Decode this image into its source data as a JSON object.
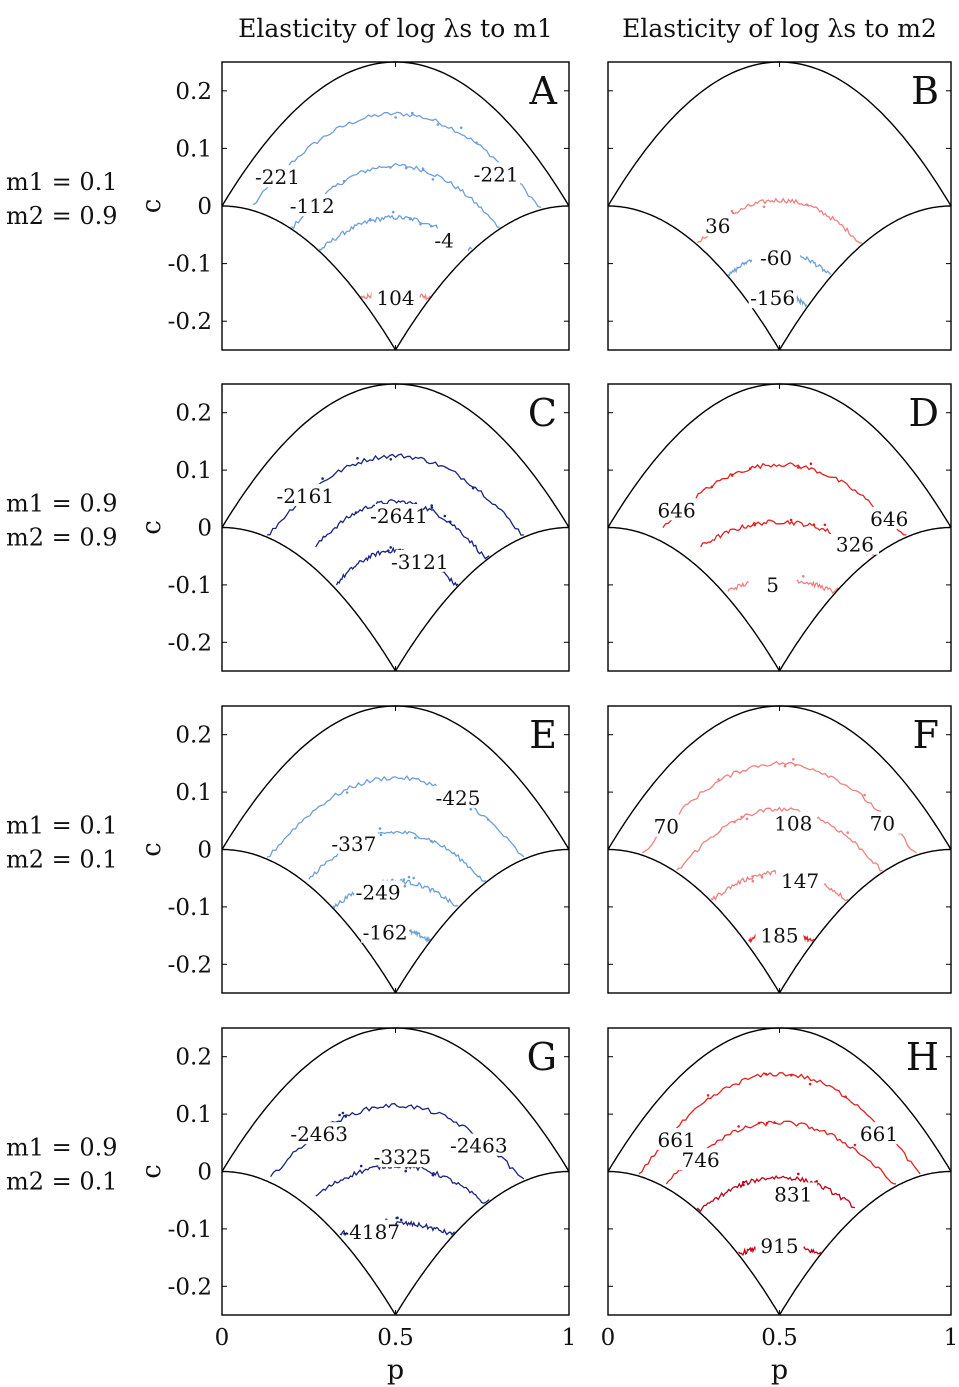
{
  "column_titles": [
    "Elasticity of log λs to m1",
    "Elasticity of log λs to m2"
  ],
  "row_labels": [
    [
      "m1 = 0.1",
      "m2 = 0.9"
    ],
    [
      "m1 = 0.9",
      "m2 = 0.9"
    ],
    [
      "m1 = 0.1",
      "m2 = 0.1"
    ],
    [
      "m1 = 0.9",
      "m2 = 0.1"
    ]
  ],
  "axes": {
    "xlabel": "p",
    "ylabel": "c",
    "xlim": [
      0,
      1
    ],
    "ylim": [
      -0.25,
      0.25
    ],
    "xticks": [
      "0",
      "0.5",
      "1"
    ],
    "yticks": [
      "0.2",
      "0.1",
      "0",
      "-0.1",
      "-0.2"
    ],
    "ytick_values": [
      0.2,
      0.1,
      0,
      -0.1,
      -0.2
    ]
  },
  "colors": {
    "light_blue": "#6f9fd8",
    "dark_blue": "#1a237e",
    "light_red": "#f08080",
    "red": "#e02020",
    "dark_red": "#c00018"
  },
  "chart_data": [
    {
      "type": "contour",
      "panel": "A",
      "contours": [
        {
          "level": -221,
          "color": "#6f9fd8",
          "p": [
            0.09,
            0.92
          ],
          "c_peak": 0.16,
          "labels": [
            {
              "text": "-221",
              "p": 0.16,
              "c": 0.05
            },
            {
              "text": "-221",
              "p": 0.79,
              "c": 0.055
            }
          ]
        },
        {
          "level": -112,
          "color": "#6f9fd8",
          "p": [
            0.2,
            0.8
          ],
          "c_peak": 0.07,
          "labels": [
            {
              "text": "-112",
              "p": 0.26,
              "c": 0.0
            }
          ]
        },
        {
          "level": -4,
          "color": "#6f9fd8",
          "p": [
            0.28,
            0.72
          ],
          "c_peak": -0.02,
          "labels": [
            {
              "text": "-4",
              "p": 0.64,
              "c": -0.06
            }
          ]
        },
        {
          "level": 104,
          "color": "#f08080",
          "p": [
            0.4,
            0.6
          ],
          "c_peak": -0.15,
          "labels": [
            {
              "text": "104",
              "p": 0.5,
              "c": -0.16
            }
          ]
        }
      ]
    },
    {
      "type": "contour",
      "panel": "B",
      "contours": [
        {
          "level": 36,
          "color": "#f08080",
          "p": [
            0.26,
            0.74
          ],
          "c_peak": 0.01,
          "labels": [
            {
              "text": "36",
              "p": 0.32,
              "c": -0.035
            }
          ]
        },
        {
          "level": -60,
          "color": "#6f9fd8",
          "p": [
            0.35,
            0.65
          ],
          "c_peak": -0.08,
          "labels": [
            {
              "text": "-60",
              "p": 0.49,
              "c": -0.09
            }
          ]
        },
        {
          "level": -156,
          "color": "#6f9fd8",
          "p": [
            0.42,
            0.58
          ],
          "c_peak": -0.15,
          "labels": [
            {
              "text": "-156",
              "p": 0.48,
              "c": -0.16
            }
          ]
        }
      ]
    },
    {
      "type": "contour",
      "panel": "C",
      "contours": [
        {
          "level": -2161,
          "color": "#1a237e",
          "p": [
            0.13,
            0.87
          ],
          "c_peak": 0.125,
          "labels": [
            {
              "text": "-2161",
              "p": 0.24,
              "c": 0.055
            }
          ]
        },
        {
          "level": -2641,
          "color": "#1a237e",
          "p": [
            0.27,
            0.77
          ],
          "c_peak": 0.045,
          "labels": [
            {
              "text": "-2641",
              "p": 0.51,
              "c": 0.02
            }
          ]
        },
        {
          "level": -3121,
          "color": "#1a237e",
          "p": [
            0.33,
            0.68
          ],
          "c_peak": -0.04,
          "labels": [
            {
              "text": "-3121",
              "p": 0.57,
              "c": -0.06
            }
          ]
        }
      ]
    },
    {
      "type": "contour",
      "panel": "D",
      "contours": [
        {
          "level": 646,
          "color": "#e02020",
          "p": [
            0.16,
            0.87
          ],
          "c_peak": 0.11,
          "labels": [
            {
              "text": "646",
              "p": 0.2,
              "c": 0.03
            },
            {
              "text": "646",
              "p": 0.82,
              "c": 0.015
            }
          ]
        },
        {
          "level": 326,
          "color": "#e02020",
          "p": [
            0.27,
            0.79
          ],
          "c_peak": 0.01,
          "labels": [
            {
              "text": "326",
              "p": 0.72,
              "c": -0.03
            }
          ]
        },
        {
          "level": 5,
          "color": "#f08080",
          "p": [
            0.35,
            0.67
          ],
          "c_peak": -0.09,
          "labels": [
            {
              "text": "5",
              "p": 0.48,
              "c": -0.1
            }
          ]
        }
      ]
    },
    {
      "type": "contour",
      "panel": "E",
      "contours": [
        {
          "level": -425,
          "color": "#6f9fd8",
          "p": [
            0.13,
            0.87
          ],
          "c_peak": 0.125,
          "labels": [
            {
              "text": "-425",
              "p": 0.68,
              "c": 0.09
            }
          ]
        },
        {
          "level": -337,
          "color": "#6f9fd8",
          "p": [
            0.25,
            0.76
          ],
          "c_peak": 0.03,
          "labels": [
            {
              "text": "-337",
              "p": 0.38,
              "c": 0.01
            }
          ]
        },
        {
          "level": -249,
          "color": "#6f9fd8",
          "p": [
            0.32,
            0.68
          ],
          "c_peak": -0.055,
          "labels": [
            {
              "text": "-249",
              "p": 0.45,
              "c": -0.075
            }
          ]
        },
        {
          "level": -162,
          "color": "#6f9fd8",
          "p": [
            0.4,
            0.6
          ],
          "c_peak": -0.14,
          "labels": [
            {
              "text": "-162",
              "p": 0.47,
              "c": -0.145
            }
          ]
        }
      ]
    },
    {
      "type": "contour",
      "panel": "F",
      "contours": [
        {
          "level": 70,
          "color": "#f08080",
          "p": [
            0.1,
            0.9
          ],
          "c_peak": 0.15,
          "labels": [
            {
              "text": "70",
              "p": 0.17,
              "c": 0.04
            },
            {
              "text": "70",
              "p": 0.8,
              "c": 0.045
            }
          ]
        },
        {
          "level": 108,
          "color": "#f08080",
          "p": [
            0.2,
            0.8
          ],
          "c_peak": 0.07,
          "labels": [
            {
              "text": "108",
              "p": 0.54,
              "c": 0.045
            }
          ]
        },
        {
          "level": 147,
          "color": "#f08080",
          "p": [
            0.3,
            0.7
          ],
          "c_peak": -0.04,
          "labels": [
            {
              "text": "147",
              "p": 0.56,
              "c": -0.055
            }
          ]
        },
        {
          "level": 185,
          "color": "#e02020",
          "p": [
            0.41,
            0.6
          ],
          "c_peak": -0.14,
          "labels": [
            {
              "text": "185",
              "p": 0.5,
              "c": -0.15
            }
          ]
        }
      ]
    },
    {
      "type": "contour",
      "panel": "G",
      "contours": [
        {
          "level": -2463,
          "color": "#1a237e",
          "p": [
            0.14,
            0.87
          ],
          "c_peak": 0.115,
          "labels": [
            {
              "text": "-2463",
              "p": 0.28,
              "c": 0.065
            },
            {
              "text": "-2463",
              "p": 0.74,
              "c": 0.045
            }
          ]
        },
        {
          "level": -3325,
          "color": "#1a237e",
          "p": [
            0.27,
            0.77
          ],
          "c_peak": 0.01,
          "labels": [
            {
              "text": "-3325",
              "p": 0.52,
              "c": 0.025
            }
          ]
        },
        {
          "level": -4187,
          "color": "#1a237e",
          "p": [
            0.34,
            0.67
          ],
          "c_peak": -0.09,
          "labels": [
            {
              "text": "-4187",
              "p": 0.43,
              "c": -0.105
            }
          ]
        }
      ]
    },
    {
      "type": "contour",
      "panel": "H",
      "contours": [
        {
          "level": 661,
          "color": "#e02020",
          "p": [
            0.09,
            0.91
          ],
          "c_peak": 0.17,
          "labels": [
            {
              "text": "661",
              "p": 0.2,
              "c": 0.055
            },
            {
              "text": "661",
              "p": 0.79,
              "c": 0.065
            }
          ]
        },
        {
          "level": 746,
          "color": "#e02020",
          "p": [
            0.17,
            0.84
          ],
          "c_peak": 0.085,
          "labels": [
            {
              "text": "746",
              "p": 0.27,
              "c": 0.02
            }
          ]
        },
        {
          "level": 831,
          "color": "#c00018",
          "p": [
            0.26,
            0.72
          ],
          "c_peak": -0.01,
          "labels": [
            {
              "text": "831",
              "p": 0.54,
              "c": -0.04
            }
          ]
        },
        {
          "level": 915,
          "color": "#c00018",
          "p": [
            0.38,
            0.62
          ],
          "c_peak": -0.13,
          "labels": [
            {
              "text": "915",
              "p": 0.5,
              "c": -0.13
            }
          ]
        }
      ]
    }
  ]
}
